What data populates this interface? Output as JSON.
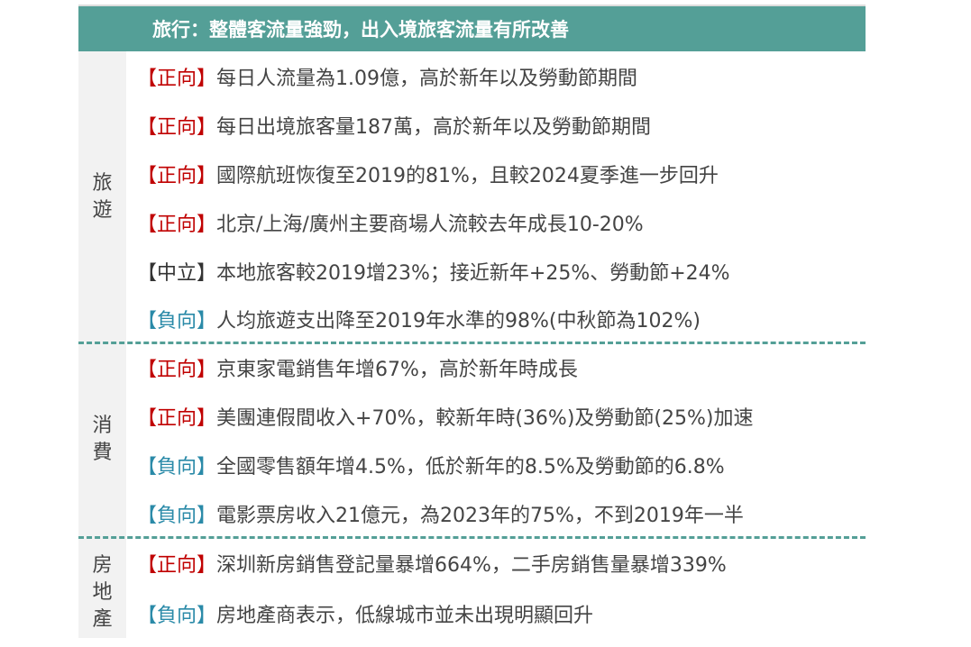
{
  "header": {
    "title": "旅行：整體客流量強勁，出入境旅客流量有所改善"
  },
  "colors": {
    "positive": "#c00000",
    "neutral": "#333333",
    "negative": "#2a8aa8",
    "header_bg": "#549f97"
  },
  "sections": [
    {
      "label": "旅\n遊",
      "items": [
        {
          "tag": "【正向】",
          "sentiment": "positive",
          "text": "每日人流量為1.09億，高於新年以及勞動節期間"
        },
        {
          "tag": "【正向】",
          "sentiment": "positive",
          "text": "每日出境旅客量187萬，高於新年以及勞動節期間"
        },
        {
          "tag": "【正向】",
          "sentiment": "positive",
          "text": "國際航班恢復至2019的81%，且較2024夏季進一步回升"
        },
        {
          "tag": "【正向】",
          "sentiment": "positive",
          "text": "北京/上海/廣州主要商場人流較去年成長10-20%"
        },
        {
          "tag": "【中立】",
          "sentiment": "neutral",
          "text": "本地旅客較2019增23%；接近新年+25%、勞動節+24%"
        },
        {
          "tag": "【負向】",
          "sentiment": "negative",
          "text": "人均旅遊支出降至2019年水準的98%(中秋節為102%)"
        }
      ]
    },
    {
      "label": "消\n費",
      "items": [
        {
          "tag": "【正向】",
          "sentiment": "positive",
          "text": "京東家電銷售年增67%，高於新年時成長"
        },
        {
          "tag": "【正向】",
          "sentiment": "positive",
          "text": "美團連假間收入+70%，較新年時(36%)及勞動節(25%)加速"
        },
        {
          "tag": "【負向】",
          "sentiment": "negative",
          "text": "全國零售額年增4.5%，低於新年的8.5%及勞動節的6.8%"
        },
        {
          "tag": "【負向】",
          "sentiment": "negative",
          "text": "電影票房收入21億元，為2023年的75%，不到2019年一半"
        }
      ]
    },
    {
      "label": "房\n地\n產",
      "items": [
        {
          "tag": "【正向】",
          "sentiment": "positive",
          "text": "深圳新房銷售登記量暴增664%，二手房銷售量暴增339%"
        },
        {
          "tag": "【負向】",
          "sentiment": "negative",
          "text": "房地產商表示，低線城市並未出現明顯回升"
        }
      ]
    }
  ]
}
